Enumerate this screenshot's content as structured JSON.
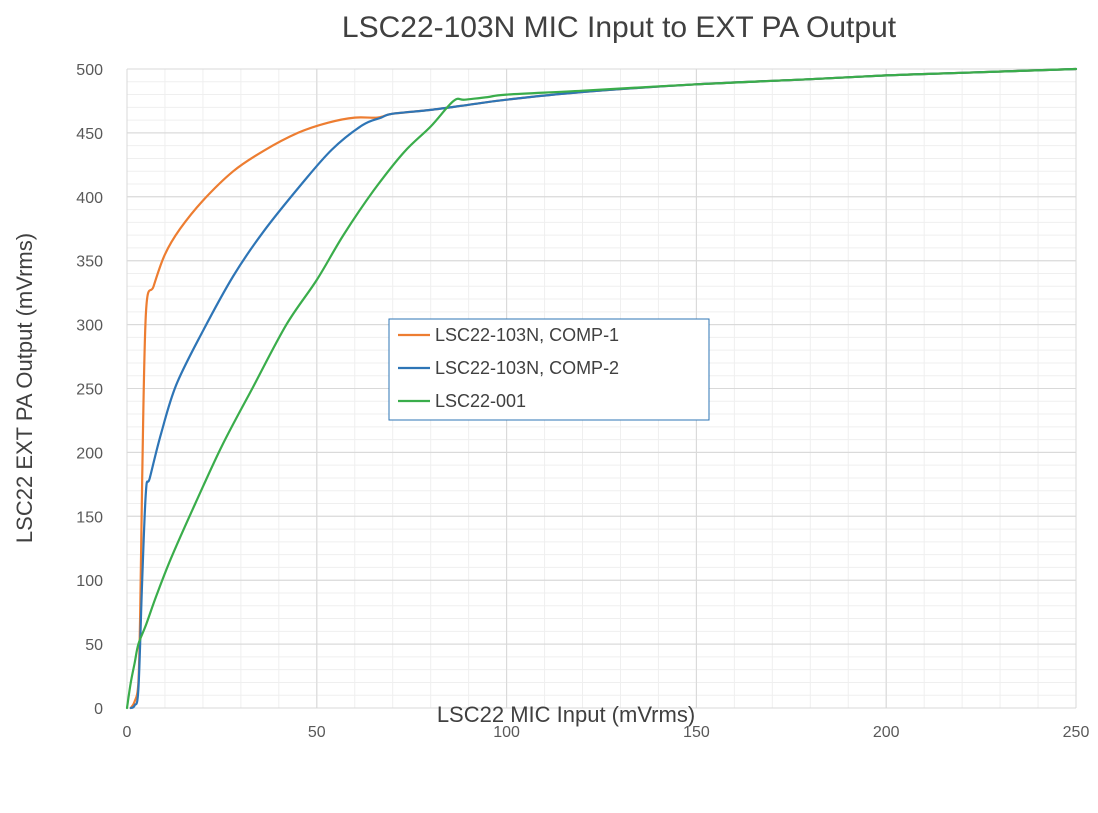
{
  "chart_data": {
    "type": "line",
    "title": "LSC22-103N MIC Input to EXT PA Output",
    "xlabel": "LSC22 MIC Input (mVrms)",
    "ylabel": "LSC22 EXT PA Output (mVrms)",
    "xlim": [
      0,
      250
    ],
    "ylim": [
      0,
      500
    ],
    "x_ticks": [
      "0",
      "50",
      "100",
      "150",
      "200",
      "250"
    ],
    "y_ticks": [
      "0",
      "50",
      "100",
      "150",
      "200",
      "250",
      "300",
      "350",
      "400",
      "450",
      "500"
    ],
    "grid": true,
    "minor_grid": true,
    "legend_position": "center",
    "series": [
      {
        "name": "LSC22-103N, COMP-1",
        "color": "#ed7d31",
        "points": [
          [
            1,
            0
          ],
          [
            2,
            5
          ],
          [
            3,
            20
          ],
          [
            3.5,
            80
          ],
          [
            4,
            180
          ],
          [
            5,
            310
          ],
          [
            7,
            330
          ],
          [
            10,
            355
          ],
          [
            14,
            375
          ],
          [
            20,
            397
          ],
          [
            28,
            420
          ],
          [
            36,
            436
          ],
          [
            45,
            450
          ],
          [
            53,
            458
          ],
          [
            60,
            462
          ],
          [
            66,
            462
          ],
          [
            70,
            465
          ],
          [
            80,
            468
          ],
          [
            90,
            472
          ],
          [
            100,
            476
          ],
          [
            120,
            482
          ],
          [
            150,
            488
          ],
          [
            180,
            492
          ],
          [
            200,
            495
          ],
          [
            220,
            497
          ],
          [
            250,
            500
          ]
        ]
      },
      {
        "name": "LSC22-103N, COMP-2",
        "color": "#2e75b6",
        "points": [
          [
            1,
            0
          ],
          [
            2,
            2
          ],
          [
            3,
            15
          ],
          [
            4,
            100
          ],
          [
            5,
            170
          ],
          [
            6,
            180
          ],
          [
            9,
            215
          ],
          [
            13,
            253
          ],
          [
            20,
            295
          ],
          [
            28,
            338
          ],
          [
            36,
            373
          ],
          [
            46,
            410
          ],
          [
            54,
            437
          ],
          [
            62,
            456
          ],
          [
            67,
            462
          ],
          [
            70,
            465
          ],
          [
            80,
            468
          ],
          [
            90,
            472
          ],
          [
            100,
            476
          ],
          [
            120,
            482
          ],
          [
            150,
            488
          ],
          [
            180,
            492
          ],
          [
            200,
            495
          ],
          [
            220,
            497
          ],
          [
            250,
            500
          ]
        ]
      },
      {
        "name": "LSC22-001",
        "color": "#3aad4b",
        "points": [
          [
            0,
            0
          ],
          [
            1,
            20
          ],
          [
            2,
            35
          ],
          [
            3,
            50
          ],
          [
            5,
            65
          ],
          [
            8,
            90
          ],
          [
            12,
            120
          ],
          [
            18,
            160
          ],
          [
            25,
            205
          ],
          [
            33,
            250
          ],
          [
            42,
            300
          ],
          [
            50,
            335
          ],
          [
            57,
            370
          ],
          [
            65,
            405
          ],
          [
            73,
            435
          ],
          [
            80,
            455
          ],
          [
            86,
            475
          ],
          [
            89,
            476
          ],
          [
            95,
            478
          ],
          [
            100,
            480
          ],
          [
            120,
            483
          ],
          [
            150,
            488
          ],
          [
            180,
            492
          ],
          [
            200,
            495
          ],
          [
            220,
            497
          ],
          [
            250,
            500
          ]
        ]
      }
    ]
  }
}
